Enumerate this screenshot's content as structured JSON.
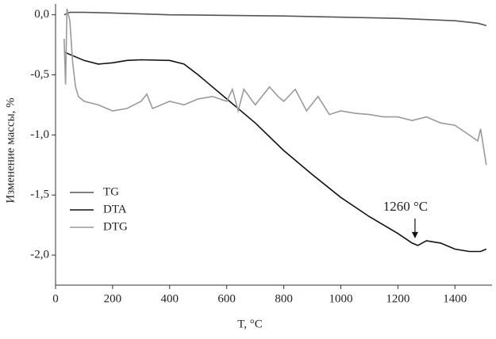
{
  "chart_data": {
    "type": "line",
    "xlabel": "T, °C",
    "ylabel": "Изменение массы, %",
    "xlim": [
      0,
      1530
    ],
    "ylim": [
      -2.25,
      0.09
    ],
    "xticks": [
      0,
      200,
      400,
      600,
      800,
      1000,
      1200,
      1400
    ],
    "yticks": [
      {
        "value": 0,
        "label": "0,0"
      },
      {
        "value": -0.5,
        "label": "-0,5"
      },
      {
        "value": -1,
        "label": "-1,0"
      },
      {
        "value": -1.5,
        "label": "-1,5"
      },
      {
        "value": -2,
        "label": "-2,0"
      }
    ],
    "legend": "lower left",
    "series": [
      {
        "name": "TG",
        "color": "#555555",
        "x": [
          30,
          50,
          100,
          200,
          400,
          600,
          800,
          1000,
          1200,
          1400,
          1480,
          1510
        ],
        "values": [
          0.0,
          0.02,
          0.02,
          0.015,
          0.0,
          -0.005,
          -0.01,
          -0.02,
          -0.03,
          -0.05,
          -0.07,
          -0.09
        ]
      },
      {
        "name": "DTA",
        "color": "#111111",
        "x": [
          30,
          100,
          150,
          200,
          250,
          300,
          400,
          450,
          500,
          550,
          600,
          700,
          800,
          900,
          1000,
          1100,
          1200,
          1250,
          1270,
          1300,
          1350,
          1400,
          1450,
          1490,
          1510
        ],
        "values": [
          -0.31,
          -0.38,
          -0.41,
          -0.4,
          -0.38,
          -0.375,
          -0.38,
          -0.41,
          -0.5,
          -0.6,
          -0.7,
          -0.9,
          -1.13,
          -1.33,
          -1.52,
          -1.68,
          -1.82,
          -1.9,
          -1.92,
          -1.88,
          -1.9,
          -1.95,
          -1.97,
          -1.97,
          -1.95
        ]
      },
      {
        "name": "DTG",
        "color": "#9a9a9a",
        "x": [
          30,
          35,
          40,
          50,
          60,
          70,
          80,
          100,
          150,
          200,
          250,
          300,
          320,
          340,
          400,
          450,
          500,
          550,
          600,
          620,
          640,
          660,
          700,
          750,
          780,
          800,
          840,
          880,
          920,
          960,
          1000,
          1050,
          1100,
          1150,
          1200,
          1250,
          1300,
          1350,
          1400,
          1450,
          1480,
          1490,
          1500,
          1510
        ],
        "values": [
          -0.2,
          -0.58,
          0.05,
          -0.05,
          -0.4,
          -0.6,
          -0.68,
          -0.72,
          -0.75,
          -0.8,
          -0.78,
          -0.72,
          -0.66,
          -0.78,
          -0.72,
          -0.75,
          -0.7,
          -0.68,
          -0.72,
          -0.62,
          -0.8,
          -0.62,
          -0.75,
          -0.6,
          -0.68,
          -0.72,
          -0.62,
          -0.8,
          -0.68,
          -0.83,
          -0.8,
          -0.82,
          -0.83,
          -0.85,
          -0.85,
          -0.88,
          -0.85,
          -0.9,
          -0.92,
          -1.0,
          -1.05,
          -0.95,
          -1.1,
          -1.25
        ]
      }
    ],
    "annotations": [
      {
        "text": "1260 °C",
        "x": 1260,
        "y": -1.88
      }
    ]
  }
}
